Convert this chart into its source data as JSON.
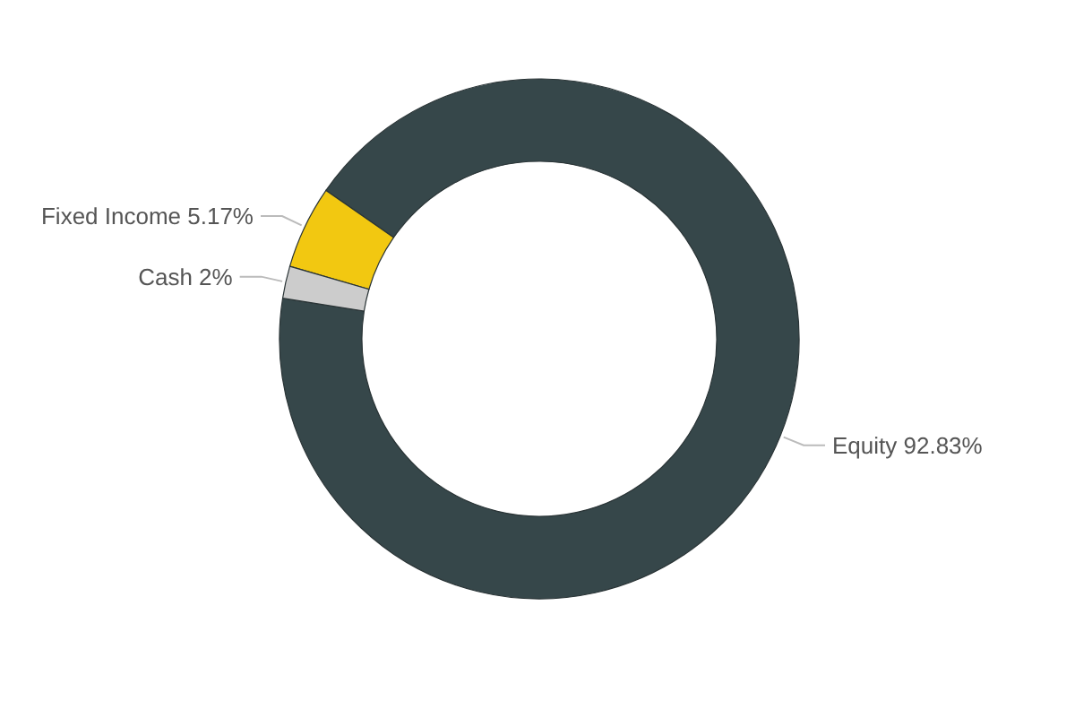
{
  "chart_data": {
    "type": "donut",
    "categories": [
      "Equity",
      "Fixed Income",
      "Cash"
    ],
    "values": [
      92.83,
      5.17,
      2
    ],
    "value_labels": [
      "92.83%",
      "5.17%",
      "2%"
    ],
    "colors": [
      "#36474a",
      "#f2c811",
      "#cccccc"
    ]
  }
}
